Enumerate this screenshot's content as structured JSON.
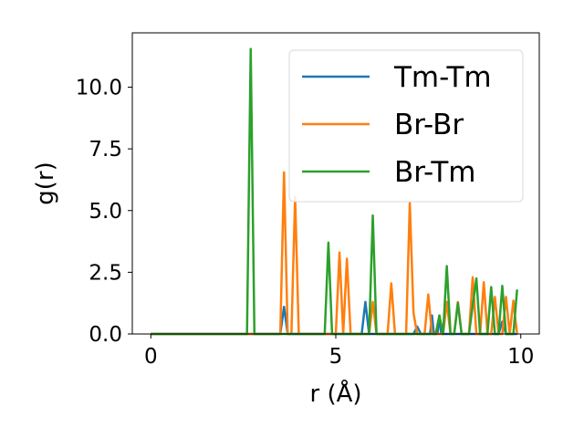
{
  "chart_data": {
    "type": "line",
    "xlabel": "r (Å)",
    "ylabel": "g(r)",
    "xlim": [
      -0.5,
      10.5
    ],
    "ylim": [
      0,
      12.2
    ],
    "xticks": [
      0,
      5,
      10
    ],
    "xtick_labels": [
      "0",
      "5",
      "10"
    ],
    "yticks": [
      0.0,
      2.5,
      5.0,
      7.5,
      10.0
    ],
    "ytick_labels": [
      "0.0",
      "2.5",
      "5.0",
      "7.5",
      "10.0"
    ],
    "grid": false,
    "legend_position": "upper right",
    "series": [
      {
        "name": "Tm-Tm",
        "color": "#1f77b4",
        "x": [
          0,
          3.5,
          3.6,
          3.7,
          5.7,
          5.8,
          5.9,
          7.1,
          7.2,
          7.3,
          7.55,
          7.6,
          7.65,
          7.75,
          7.8,
          7.85,
          9.4,
          9.5,
          9.6,
          9.9
        ],
        "y": [
          0,
          0,
          1.1,
          0,
          0,
          1.3,
          0,
          0,
          0.3,
          0,
          0,
          0.75,
          0,
          0,
          0.75,
          0,
          0,
          0.5,
          0,
          0
        ]
      },
      {
        "name": "Br-Br",
        "color": "#ff7f0e",
        "x": [
          0,
          3.5,
          3.6,
          3.7,
          3.8,
          3.9,
          4.0,
          5.0,
          5.1,
          5.2,
          5.3,
          5.4,
          5.5,
          5.9,
          6.0,
          6.1,
          6.4,
          6.5,
          6.6,
          6.9,
          7.0,
          7.1,
          7.2,
          7.4,
          7.5,
          7.6,
          7.9,
          8.0,
          8.1,
          8.2,
          8.3,
          8.4,
          8.6,
          8.7,
          8.8,
          8.9,
          9.0,
          9.1,
          9.2,
          9.3,
          9.4,
          9.5,
          9.6,
          9.7,
          9.8,
          9.9
        ],
        "y": [
          0,
          0,
          6.55,
          0,
          0,
          5.55,
          0,
          0,
          3.3,
          0,
          3.05,
          0,
          0,
          0,
          1.3,
          0,
          0,
          2.05,
          0,
          0,
          5.3,
          0.85,
          0,
          0,
          1.6,
          0,
          0,
          1.3,
          0,
          0,
          1.3,
          0,
          0,
          2.3,
          0,
          0,
          2.1,
          0,
          0,
          1.5,
          0,
          0,
          1.5,
          0,
          1.35,
          0
        ]
      },
      {
        "name": "Br-Tm",
        "color": "#2ca02c",
        "x": [
          0,
          2.6,
          2.7,
          2.8,
          4.7,
          4.8,
          4.9,
          5.9,
          6.0,
          6.1,
          7.7,
          7.8,
          7.9,
          8.0,
          8.1,
          8.2,
          8.3,
          8.4,
          8.6,
          8.7,
          8.8,
          8.9,
          9.1,
          9.2,
          9.3,
          9.4,
          9.5,
          9.6,
          9.8,
          9.9
        ],
        "y": [
          0,
          0,
          11.55,
          0,
          0,
          3.7,
          0,
          0,
          4.8,
          0,
          0,
          0.75,
          0,
          2.75,
          0,
          0,
          1.25,
          0,
          0,
          1.15,
          2.25,
          0,
          0,
          1.9,
          0,
          0,
          1.95,
          0,
          0,
          1.8
        ]
      }
    ]
  }
}
